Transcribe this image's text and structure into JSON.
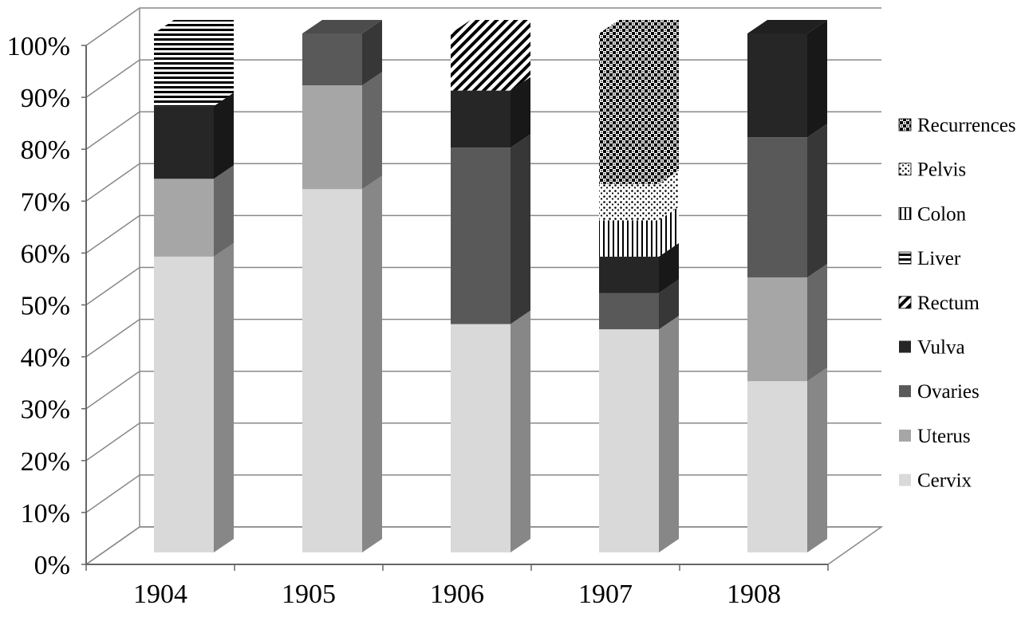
{
  "chart_data": {
    "type": "bar",
    "stacked": true,
    "percent": true,
    "three_d": true,
    "title": "",
    "xlabel": "",
    "ylabel": "",
    "categories": [
      "1904",
      "1905",
      "1906",
      "1907",
      "1908"
    ],
    "ylim": [
      0,
      100
    ],
    "yticks": [
      "0%",
      "10%",
      "20%",
      "30%",
      "40%",
      "50%",
      "60%",
      "70%",
      "80%",
      "90%",
      "100%"
    ],
    "grid": true,
    "legend_position": "right",
    "series": [
      {
        "name": "Cervix",
        "values": [
          57,
          70,
          44,
          43,
          33
        ],
        "pattern": "solid",
        "color": "#d9d9d9"
      },
      {
        "name": "Uterus",
        "values": [
          15,
          20,
          0,
          0,
          20
        ],
        "pattern": "solid",
        "color": "#a6a6a6"
      },
      {
        "name": "Ovaries",
        "values": [
          0,
          10,
          34,
          7,
          27
        ],
        "pattern": "solid",
        "color": "#595959"
      },
      {
        "name": "Vulva",
        "values": [
          14,
          0,
          11,
          7,
          20
        ],
        "pattern": "solid",
        "color": "#262626"
      },
      {
        "name": "Rectum",
        "values": [
          0,
          0,
          11,
          0,
          0
        ],
        "pattern": "diagonal-stripes",
        "color": "#000000"
      },
      {
        "name": "Liver",
        "values": [
          14,
          0,
          0,
          0,
          0
        ],
        "pattern": "horizontal-stripes",
        "color": "#000000"
      },
      {
        "name": "Colon",
        "values": [
          0,
          0,
          0,
          7,
          0
        ],
        "pattern": "vertical-stripes",
        "color": "#000000"
      },
      {
        "name": "Pelvis",
        "values": [
          0,
          0,
          0,
          7,
          0
        ],
        "pattern": "dots",
        "color": "#000000"
      },
      {
        "name": "Recurrences",
        "values": [
          0,
          0,
          0,
          29,
          0
        ],
        "pattern": "checker",
        "color": "#000000"
      }
    ]
  }
}
